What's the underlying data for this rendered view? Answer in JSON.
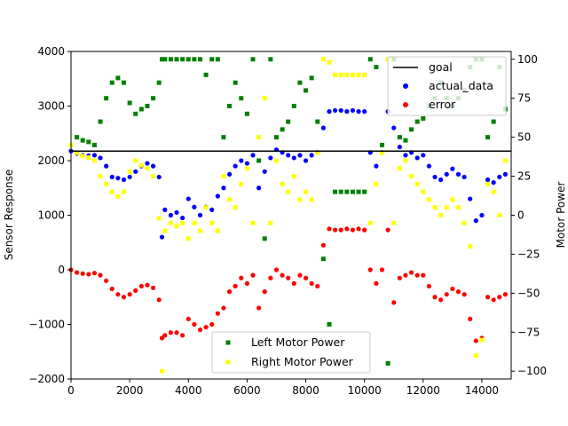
{
  "chart_data": {
    "type": "scatter",
    "xlim": [
      0,
      15000
    ],
    "ylim_left": [
      -2000,
      4000
    ],
    "ylim_right": [
      -105,
      105
    ],
    "ylabel_left": "Sensor Response",
    "ylabel_right": "Motor Power",
    "x_ticks": [
      "0",
      "2000",
      "4000",
      "6000",
      "8000",
      "10000",
      "12000",
      "14000"
    ],
    "y_left_ticks": [
      "−2000",
      "−1000",
      "0",
      "1000",
      "2000",
      "3000",
      "4000"
    ],
    "y_right_ticks": [
      "−100",
      "−75",
      "−50",
      "−25",
      "0",
      "25",
      "50",
      "75",
      "100"
    ],
    "grid": false,
    "legend_top": {
      "placement": "top-right",
      "entries": [
        {
          "label": "goal",
          "color": "#000000",
          "marker": "line"
        },
        {
          "label": "actual_data",
          "color": "#0000ff",
          "marker": "circle"
        },
        {
          "label": "error",
          "color": "#ff0000",
          "marker": "circle"
        }
      ]
    },
    "legend_bottom": {
      "placement": "lower-center",
      "entries": [
        {
          "label": "Left Motor Power",
          "color": "#008000",
          "marker": "square"
        },
        {
          "label": "Right Motor Power",
          "color": "#ffff00",
          "marker": "square"
        }
      ]
    },
    "goal": 2175,
    "actual_data": [
      [
        0,
        2175
      ],
      [
        200,
        2130
      ],
      [
        400,
        2100
      ],
      [
        600,
        2090
      ],
      [
        800,
        2100
      ],
      [
        1000,
        2050
      ],
      [
        1200,
        1900
      ],
      [
        1400,
        1700
      ],
      [
        1600,
        1680
      ],
      [
        1800,
        1650
      ],
      [
        2000,
        1700
      ],
      [
        2200,
        1800
      ],
      [
        2400,
        1900
      ],
      [
        2600,
        1950
      ],
      [
        2800,
        1900
      ],
      [
        3000,
        1700
      ],
      [
        3100,
        600
      ],
      [
        3200,
        1100
      ],
      [
        3400,
        1000
      ],
      [
        3600,
        1050
      ],
      [
        3800,
        950
      ],
      [
        4000,
        1300
      ],
      [
        4200,
        1150
      ],
      [
        4400,
        1000
      ],
      [
        4600,
        1150
      ],
      [
        4800,
        1100
      ],
      [
        5000,
        1350
      ],
      [
        5200,
        1500
      ],
      [
        5400,
        1750
      ],
      [
        5600,
        1900
      ],
      [
        5800,
        2000
      ],
      [
        6000,
        1950
      ],
      [
        6200,
        2100
      ],
      [
        6400,
        1500
      ],
      [
        6600,
        1800
      ],
      [
        6800,
        2050
      ],
      [
        7000,
        2200
      ],
      [
        7200,
        2150
      ],
      [
        7400,
        2100
      ],
      [
        7600,
        2050
      ],
      [
        7800,
        2100
      ],
      [
        8000,
        2000
      ],
      [
        8200,
        2100
      ],
      [
        8400,
        2150
      ],
      [
        8600,
        2600
      ],
      [
        8800,
        2900
      ],
      [
        9000,
        2920
      ],
      [
        9200,
        2920
      ],
      [
        9400,
        2900
      ],
      [
        9600,
        2920
      ],
      [
        9800,
        2900
      ],
      [
        10000,
        2900
      ],
      [
        10200,
        2150
      ],
      [
        10400,
        1900
      ],
      [
        10600,
        2150
      ],
      [
        10800,
        2900
      ],
      [
        11000,
        2600
      ],
      [
        11200,
        2250
      ],
      [
        11400,
        2100
      ],
      [
        11600,
        2150
      ],
      [
        11800,
        2050
      ],
      [
        12000,
        2100
      ],
      [
        12200,
        1900
      ],
      [
        12400,
        1700
      ],
      [
        12600,
        1650
      ],
      [
        12800,
        1750
      ],
      [
        13000,
        1850
      ],
      [
        13200,
        1750
      ],
      [
        13400,
        1700
      ],
      [
        13600,
        1300
      ],
      [
        13800,
        900
      ],
      [
        14000,
        1000
      ],
      [
        14200,
        1650
      ],
      [
        14400,
        1600
      ],
      [
        14600,
        1700
      ],
      [
        14800,
        1750
      ]
    ],
    "error": [
      [
        0,
        0
      ],
      [
        200,
        -50
      ],
      [
        400,
        -70
      ],
      [
        600,
        -80
      ],
      [
        800,
        -60
      ],
      [
        1000,
        -100
      ],
      [
        1200,
        -200
      ],
      [
        1400,
        -350
      ],
      [
        1600,
        -450
      ],
      [
        1800,
        -500
      ],
      [
        2000,
        -450
      ],
      [
        2200,
        -380
      ],
      [
        2400,
        -300
      ],
      [
        2600,
        -280
      ],
      [
        2800,
        -330
      ],
      [
        3000,
        -550
      ],
      [
        3100,
        -1250
      ],
      [
        3200,
        -1200
      ],
      [
        3400,
        -1150
      ],
      [
        3600,
        -1150
      ],
      [
        3800,
        -1200
      ],
      [
        4000,
        -900
      ],
      [
        4200,
        -1000
      ],
      [
        4400,
        -1100
      ],
      [
        4600,
        -1050
      ],
      [
        4800,
        -1000
      ],
      [
        5000,
        -800
      ],
      [
        5200,
        -700
      ],
      [
        5400,
        -400
      ],
      [
        5600,
        -300
      ],
      [
        5800,
        -150
      ],
      [
        6000,
        -250
      ],
      [
        6200,
        -100
      ],
      [
        6400,
        -700
      ],
      [
        6600,
        -400
      ],
      [
        6800,
        -150
      ],
      [
        7000,
        0
      ],
      [
        7200,
        -100
      ],
      [
        7400,
        -150
      ],
      [
        7600,
        -250
      ],
      [
        7800,
        -100
      ],
      [
        8000,
        -150
      ],
      [
        8200,
        -250
      ],
      [
        8400,
        -300
      ],
      [
        8600,
        450
      ],
      [
        8800,
        750
      ],
      [
        9000,
        730
      ],
      [
        9200,
        730
      ],
      [
        9400,
        750
      ],
      [
        9600,
        730
      ],
      [
        9800,
        750
      ],
      [
        10000,
        730
      ],
      [
        10200,
        0
      ],
      [
        10400,
        -250
      ],
      [
        10600,
        0
      ],
      [
        10800,
        730
      ],
      [
        11000,
        -600
      ],
      [
        11200,
        -150
      ],
      [
        11400,
        -100
      ],
      [
        11600,
        -50
      ],
      [
        11800,
        -100
      ],
      [
        12000,
        -100
      ],
      [
        12200,
        -300
      ],
      [
        12400,
        -500
      ],
      [
        12600,
        -550
      ],
      [
        12800,
        -450
      ],
      [
        13000,
        -350
      ],
      [
        13200,
        -400
      ],
      [
        13400,
        -450
      ],
      [
        13600,
        -900
      ],
      [
        13800,
        -1300
      ],
      [
        14000,
        -1250
      ],
      [
        14200,
        -500
      ],
      [
        14400,
        -550
      ],
      [
        14600,
        -500
      ],
      [
        14800,
        -450
      ]
    ],
    "left_motor_power": [
      [
        0,
        45
      ],
      [
        200,
        50
      ],
      [
        400,
        48
      ],
      [
        600,
        47
      ],
      [
        800,
        45
      ],
      [
        1000,
        60
      ],
      [
        1200,
        75
      ],
      [
        1400,
        85
      ],
      [
        1600,
        88
      ],
      [
        1800,
        85
      ],
      [
        2000,
        72
      ],
      [
        2200,
        65
      ],
      [
        2400,
        68
      ],
      [
        2600,
        70
      ],
      [
        2800,
        75
      ],
      [
        3000,
        85
      ],
      [
        3100,
        100
      ],
      [
        3200,
        100
      ],
      [
        3400,
        100
      ],
      [
        3600,
        100
      ],
      [
        3800,
        100
      ],
      [
        4000,
        100
      ],
      [
        4200,
        100
      ],
      [
        4400,
        100
      ],
      [
        4600,
        90
      ],
      [
        4800,
        100
      ],
      [
        5000,
        100
      ],
      [
        5200,
        50
      ],
      [
        5400,
        70
      ],
      [
        5600,
        85
      ],
      [
        5800,
        75
      ],
      [
        6000,
        65
      ],
      [
        6200,
        100
      ],
      [
        6400,
        35
      ],
      [
        6600,
        -15
      ],
      [
        6800,
        100
      ],
      [
        7000,
        50
      ],
      [
        7200,
        55
      ],
      [
        7400,
        60
      ],
      [
        7600,
        70
      ],
      [
        7800,
        85
      ],
      [
        8000,
        80
      ],
      [
        8200,
        88
      ],
      [
        8400,
        60
      ],
      [
        8600,
        -28
      ],
      [
        8800,
        -70
      ],
      [
        9000,
        15
      ],
      [
        9200,
        15
      ],
      [
        9400,
        15
      ],
      [
        9600,
        15
      ],
      [
        9800,
        15
      ],
      [
        10000,
        15
      ],
      [
        10200,
        100
      ],
      [
        10400,
        95
      ],
      [
        10600,
        45
      ],
      [
        10800,
        -95
      ],
      [
        11000,
        100
      ],
      [
        11200,
        50
      ],
      [
        11400,
        48
      ],
      [
        11600,
        55
      ],
      [
        11800,
        60
      ],
      [
        12000,
        62
      ],
      [
        12200,
        70
      ],
      [
        12400,
        75
      ],
      [
        12600,
        85
      ],
      [
        12800,
        75
      ],
      [
        13000,
        70
      ],
      [
        13200,
        75
      ],
      [
        13400,
        80
      ],
      [
        13600,
        95
      ],
      [
        13800,
        100
      ],
      [
        14000,
        100
      ],
      [
        14200,
        50
      ],
      [
        14400,
        60
      ],
      [
        14600,
        95
      ],
      [
        14800,
        68
      ]
    ],
    "right_motor_power": [
      [
        0,
        45
      ],
      [
        200,
        40
      ],
      [
        400,
        38
      ],
      [
        600,
        37
      ],
      [
        800,
        35
      ],
      [
        1000,
        25
      ],
      [
        1200,
        20
      ],
      [
        1400,
        15
      ],
      [
        1600,
        12
      ],
      [
        1800,
        15
      ],
      [
        2000,
        28
      ],
      [
        2200,
        35
      ],
      [
        2400,
        32
      ],
      [
        2600,
        30
      ],
      [
        2800,
        25
      ],
      [
        3000,
        -2
      ],
      [
        3100,
        -100
      ],
      [
        3200,
        -10
      ],
      [
        3400,
        -5
      ],
      [
        3600,
        -7
      ],
      [
        3800,
        -5
      ],
      [
        4000,
        -15
      ],
      [
        4200,
        -5
      ],
      [
        4400,
        -10
      ],
      [
        4600,
        5
      ],
      [
        4800,
        -5
      ],
      [
        5000,
        -10
      ],
      [
        5200,
        25
      ],
      [
        5400,
        10
      ],
      [
        5600,
        5
      ],
      [
        5800,
        20
      ],
      [
        6000,
        30
      ],
      [
        6200,
        -5
      ],
      [
        6400,
        50
      ],
      [
        6600,
        75
      ],
      [
        6800,
        -5
      ],
      [
        7000,
        35
      ],
      [
        7200,
        20
      ],
      [
        7400,
        15
      ],
      [
        7600,
        25
      ],
      [
        7800,
        10
      ],
      [
        8000,
        15
      ],
      [
        8200,
        10
      ],
      [
        8400,
        40
      ],
      [
        8600,
        100
      ],
      [
        8800,
        98
      ],
      [
        9000,
        90
      ],
      [
        9200,
        90
      ],
      [
        9400,
        90
      ],
      [
        9600,
        90
      ],
      [
        9800,
        90
      ],
      [
        10000,
        90
      ],
      [
        10200,
        -5
      ],
      [
        10400,
        20
      ],
      [
        10600,
        40
      ],
      [
        10800,
        100
      ],
      [
        11000,
        -5
      ],
      [
        11200,
        30
      ],
      [
        11400,
        35
      ],
      [
        11600,
        25
      ],
      [
        11800,
        20
      ],
      [
        12000,
        15
      ],
      [
        12200,
        10
      ],
      [
        12400,
        5
      ],
      [
        12600,
        0
      ],
      [
        12800,
        5
      ],
      [
        13000,
        10
      ],
      [
        13200,
        5
      ],
      [
        13400,
        -5
      ],
      [
        13600,
        -20
      ],
      [
        13800,
        -90
      ],
      [
        14000,
        -80
      ],
      [
        14200,
        20
      ],
      [
        14400,
        15
      ],
      [
        14600,
        0
      ],
      [
        14800,
        35
      ]
    ]
  }
}
